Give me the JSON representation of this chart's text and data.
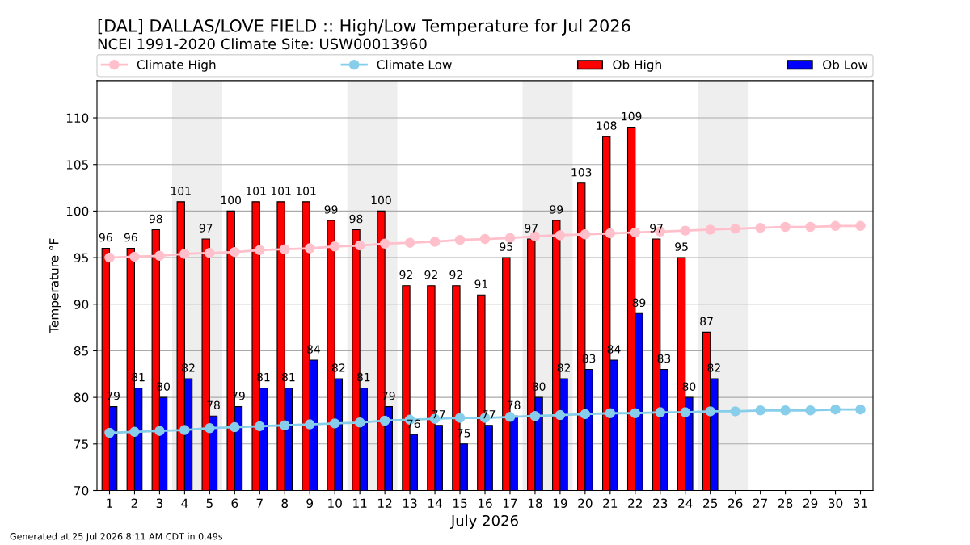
{
  "chart_data": {
    "type": "bar",
    "title": "[DAL] DALLAS/LOVE FIELD :: High/Low Temperature for Jul 2026",
    "subtitle": "NCEI 1991-2020 Climate Site: USW00013960",
    "xlabel": "July 2026",
    "ylabel": "Temperature °F",
    "x": [
      1,
      2,
      3,
      4,
      5,
      6,
      7,
      8,
      9,
      10,
      11,
      12,
      13,
      14,
      15,
      16,
      17,
      18,
      19,
      20,
      21,
      22,
      23,
      24,
      25,
      26,
      27,
      28,
      29,
      30,
      31
    ],
    "series": [
      {
        "name": "Climate High",
        "type": "line",
        "color": "#ffc0cb",
        "marker": "circle",
        "values": [
          95.0,
          95.1,
          95.2,
          95.4,
          95.5,
          95.6,
          95.8,
          95.9,
          96.0,
          96.2,
          96.3,
          96.5,
          96.6,
          96.7,
          96.9,
          97.0,
          97.1,
          97.3,
          97.4,
          97.5,
          97.6,
          97.7,
          97.8,
          97.9,
          98.0,
          98.1,
          98.2,
          98.3,
          98.3,
          98.4,
          98.4
        ]
      },
      {
        "name": "Climate Low",
        "type": "line",
        "color": "#87ceeb",
        "marker": "circle",
        "values": [
          76.2,
          76.3,
          76.4,
          76.5,
          76.7,
          76.8,
          76.9,
          77.0,
          77.1,
          77.2,
          77.3,
          77.5,
          77.6,
          77.7,
          77.8,
          77.8,
          77.9,
          78.0,
          78.1,
          78.2,
          78.3,
          78.3,
          78.4,
          78.4,
          78.5,
          78.5,
          78.6,
          78.6,
          78.6,
          78.7,
          78.7
        ]
      },
      {
        "name": "Ob High",
        "color": "#ff0000",
        "values": [
          96,
          96,
          98,
          101,
          97,
          100,
          101,
          101,
          101,
          99,
          98,
          100,
          92,
          92,
          92,
          91,
          95,
          97,
          99,
          103,
          108,
          109,
          97,
          95,
          87,
          null,
          null,
          null,
          null,
          null,
          null
        ],
        "value_labels": [
          "96",
          "96",
          "98",
          "101",
          "97",
          "100",
          "101",
          "101",
          "101",
          "99",
          "98",
          "100",
          "92",
          "92",
          "92",
          "91",
          "95",
          "97",
          "99",
          "103",
          "108",
          "109",
          "97",
          "95",
          "87",
          null,
          null,
          null,
          null,
          null,
          null
        ]
      },
      {
        "name": "Ob Low",
        "color": "#0000ff",
        "values": [
          79,
          81,
          80,
          82,
          78,
          79,
          81,
          81,
          84,
          82,
          81,
          79,
          76,
          77,
          75,
          77,
          78,
          80,
          82,
          83,
          84,
          89,
          83,
          80,
          82,
          null,
          null,
          null,
          null,
          null,
          null
        ],
        "value_labels": [
          "79",
          "81",
          "80",
          "82",
          "78",
          "79",
          "81",
          "81",
          "84",
          "82",
          "81",
          "79",
          "76",
          "77",
          "75",
          "77",
          "78",
          "80",
          "82",
          "83",
          "84",
          "89",
          "83",
          "80",
          "82",
          null,
          null,
          null,
          null,
          null,
          null
        ]
      }
    ],
    "xlim": [
      0.5,
      31.5
    ],
    "xticks": [
      1,
      2,
      3,
      4,
      5,
      6,
      7,
      8,
      9,
      10,
      11,
      12,
      13,
      14,
      15,
      16,
      17,
      18,
      19,
      20,
      21,
      22,
      23,
      24,
      25,
      26,
      27,
      28,
      29,
      30,
      31
    ],
    "ylim": [
      70,
      114
    ],
    "yticks": [
      70,
      75,
      80,
      85,
      90,
      95,
      100,
      105,
      110
    ],
    "bands": [
      {
        "axis": "x",
        "from": 3.5,
        "to": 5.5,
        "color": "#eeeeee"
      },
      {
        "axis": "x",
        "from": 10.5,
        "to": 12.5,
        "color": "#eeeeee"
      },
      {
        "axis": "x",
        "from": 17.5,
        "to": 19.5,
        "color": "#eeeeee"
      },
      {
        "axis": "x",
        "from": 24.5,
        "to": 26.5,
        "color": "#eeeeee"
      }
    ],
    "grid": "y",
    "legend": "top",
    "annotations": [
      "Generated at 25 Jul 2026 8:11 AM CDT in 0.49s"
    ]
  }
}
